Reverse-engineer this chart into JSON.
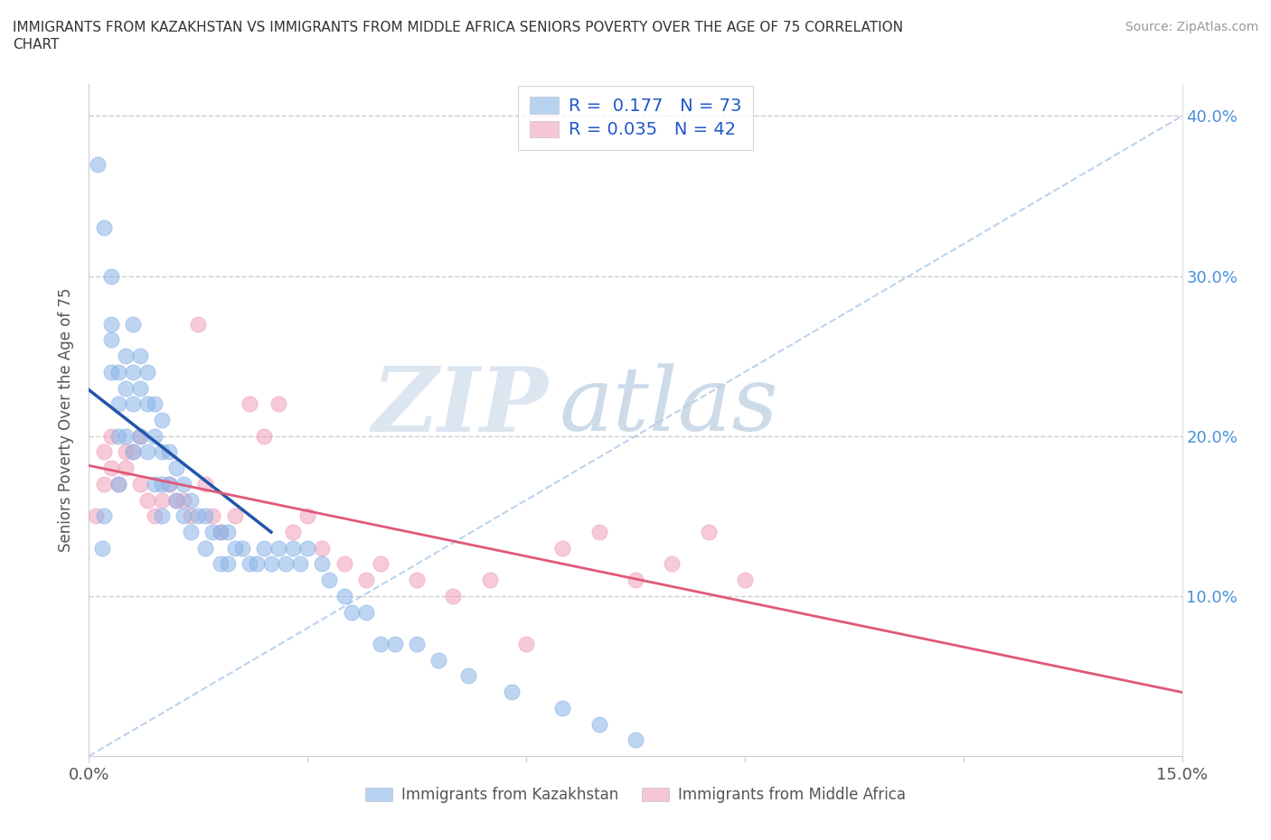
{
  "title_line1": "IMMIGRANTS FROM KAZAKHSTAN VS IMMIGRANTS FROM MIDDLE AFRICA SENIORS POVERTY OVER THE AGE OF 75 CORRELATION",
  "title_line2": "CHART",
  "source": "Source: ZipAtlas.com",
  "ylabel": "Seniors Poverty Over the Age of 75",
  "xlim": [
    0.0,
    0.15
  ],
  "ylim": [
    0.0,
    0.42
  ],
  "watermark_zip": "ZIP",
  "watermark_atlas": "atlas",
  "legend1_label": "R =  0.177   N = 73",
  "legend2_label": "R = 0.035   N = 42",
  "blue_color": "#8ab4e8",
  "pink_color": "#f0a0b8",
  "trend_blue_solid": "#2255aa",
  "trend_pink_solid": "#e05878",
  "trend_blue_dashed": "#aac8e8",
  "kazakhstan_x": [
    0.0012,
    0.0018,
    0.002,
    0.002,
    0.003,
    0.003,
    0.003,
    0.003,
    0.004,
    0.004,
    0.004,
    0.004,
    0.005,
    0.005,
    0.005,
    0.006,
    0.006,
    0.006,
    0.006,
    0.007,
    0.007,
    0.007,
    0.008,
    0.008,
    0.008,
    0.009,
    0.009,
    0.009,
    0.01,
    0.01,
    0.01,
    0.01,
    0.011,
    0.011,
    0.012,
    0.012,
    0.013,
    0.013,
    0.014,
    0.014,
    0.015,
    0.016,
    0.016,
    0.017,
    0.018,
    0.018,
    0.019,
    0.019,
    0.02,
    0.021,
    0.022,
    0.023,
    0.024,
    0.025,
    0.026,
    0.027,
    0.028,
    0.029,
    0.03,
    0.032,
    0.033,
    0.035,
    0.036,
    0.038,
    0.04,
    0.042,
    0.045,
    0.048,
    0.052,
    0.058,
    0.065,
    0.07,
    0.075
  ],
  "kazakhstan_y": [
    0.37,
    0.13,
    0.33,
    0.15,
    0.3,
    0.27,
    0.26,
    0.24,
    0.24,
    0.22,
    0.2,
    0.17,
    0.25,
    0.23,
    0.2,
    0.27,
    0.24,
    0.22,
    0.19,
    0.25,
    0.23,
    0.2,
    0.24,
    0.22,
    0.19,
    0.22,
    0.2,
    0.17,
    0.21,
    0.19,
    0.17,
    0.15,
    0.19,
    0.17,
    0.18,
    0.16,
    0.17,
    0.15,
    0.16,
    0.14,
    0.15,
    0.15,
    0.13,
    0.14,
    0.14,
    0.12,
    0.14,
    0.12,
    0.13,
    0.13,
    0.12,
    0.12,
    0.13,
    0.12,
    0.13,
    0.12,
    0.13,
    0.12,
    0.13,
    0.12,
    0.11,
    0.1,
    0.09,
    0.09,
    0.07,
    0.07,
    0.07,
    0.06,
    0.05,
    0.04,
    0.03,
    0.02,
    0.01
  ],
  "middle_africa_x": [
    0.001,
    0.002,
    0.002,
    0.003,
    0.003,
    0.004,
    0.005,
    0.005,
    0.006,
    0.007,
    0.007,
    0.008,
    0.009,
    0.01,
    0.011,
    0.012,
    0.013,
    0.014,
    0.015,
    0.016,
    0.017,
    0.018,
    0.02,
    0.022,
    0.024,
    0.026,
    0.028,
    0.03,
    0.032,
    0.035,
    0.038,
    0.04,
    0.045,
    0.05,
    0.055,
    0.06,
    0.065,
    0.07,
    0.075,
    0.08,
    0.085,
    0.09
  ],
  "middle_africa_y": [
    0.15,
    0.19,
    0.17,
    0.2,
    0.18,
    0.17,
    0.19,
    0.18,
    0.19,
    0.2,
    0.17,
    0.16,
    0.15,
    0.16,
    0.17,
    0.16,
    0.16,
    0.15,
    0.27,
    0.17,
    0.15,
    0.14,
    0.15,
    0.22,
    0.2,
    0.22,
    0.14,
    0.15,
    0.13,
    0.12,
    0.11,
    0.12,
    0.11,
    0.1,
    0.11,
    0.07,
    0.13,
    0.14,
    0.11,
    0.12,
    0.14,
    0.11
  ]
}
